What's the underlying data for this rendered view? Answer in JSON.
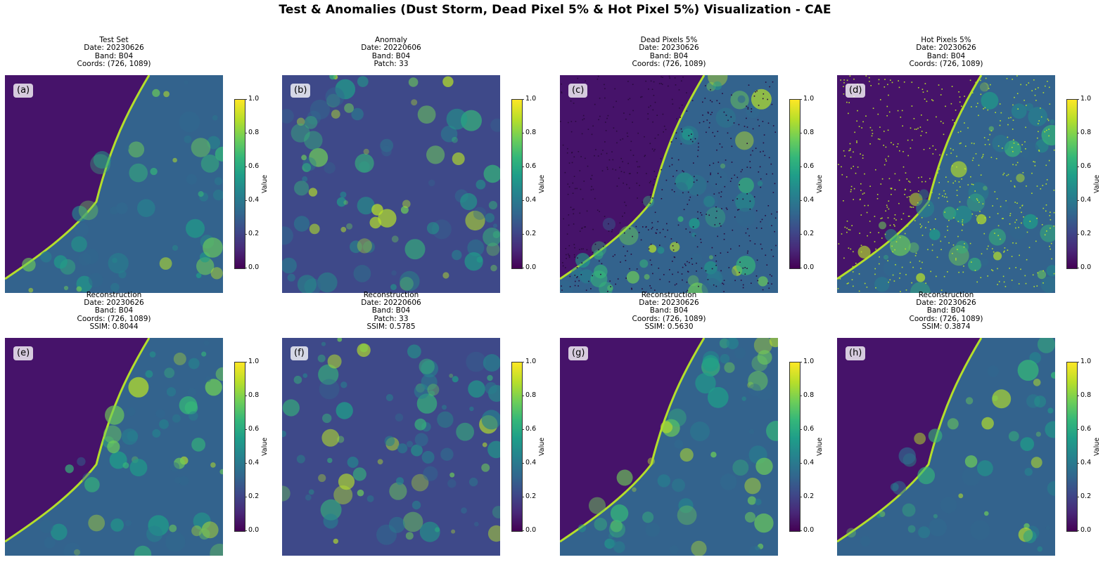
{
  "figure_title": "Test & Anomalies (Dust Storm, Dead Pixel 5% & Hot Pixel 5%) Visualization - CAE",
  "colorbar": {
    "label": "Value",
    "ticks": [
      "0.0",
      "0.2",
      "0.4",
      "0.6",
      "0.8",
      "1.0"
    ],
    "colormap": [
      "#440154",
      "#482878",
      "#3e4989",
      "#31688e",
      "#26828e",
      "#1f9e89",
      "#35b779",
      "#6ece58",
      "#b5de2b",
      "#fde725"
    ]
  },
  "panels": [
    {
      "tag": "(a)",
      "title": "Test Set",
      "lines": [
        "Date: 20230626",
        "Band: B04",
        "Coords: (726, 1089)"
      ]
    },
    {
      "tag": "(b)",
      "title": "Anomaly",
      "lines": [
        "Date: 20220606",
        "Band: B04",
        "Patch: 33"
      ]
    },
    {
      "tag": "(c)",
      "title": "Dead Pixels 5%",
      "lines": [
        "Date: 20230626",
        "Band: B04",
        "Coords: (726, 1089)"
      ]
    },
    {
      "tag": "(d)",
      "title": "Hot Pixels 5%",
      "lines": [
        "Date: 20230626",
        "Band: B04",
        "Coords: (726, 1089)"
      ]
    },
    {
      "tag": "(e)",
      "title": "Reconstruction",
      "lines": [
        "Date: 20230626",
        "Band: B04",
        "Coords: (726, 1089)",
        "SSIM: 0.8044"
      ]
    },
    {
      "tag": "(f)",
      "title": "Reconstruction",
      "lines": [
        "Date: 20220606",
        "Band: B04",
        "Patch: 33",
        "SSIM: 0.5785"
      ]
    },
    {
      "tag": "(g)",
      "title": "Reconstruction",
      "lines": [
        "Date: 20230626",
        "Band: B04",
        "Coords: (726, 1089)",
        "SSIM: 0.5630"
      ]
    },
    {
      "tag": "(h)",
      "title": "Reconstruction",
      "lines": [
        "Date: 20230626",
        "Band: B04",
        "Coords: (726, 1089)",
        "SSIM: 0.3874"
      ]
    }
  ]
}
